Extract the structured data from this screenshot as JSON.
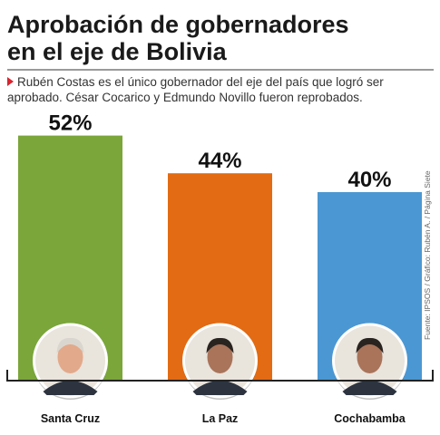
{
  "header": {
    "title_part1": "Aprobación de ",
    "title_bold": "gobernadores",
    "title_part2": "en el eje de Bolivia",
    "subtitle": "Rubén Costas es el único gobernador del eje del país que logró ser aprobado. César Cocarico y Edmundo Novillo fueron reprobados.",
    "accent_color": "#d62631"
  },
  "source": "Fuente: IPSOS / Gráfico: Rubén A. / Página Siete",
  "chart_data": {
    "type": "bar",
    "title": "Aprobación de gobernadores en el eje de Bolivia",
    "categories": [
      "Santa Cruz",
      "La Paz",
      "Cochabamba"
    ],
    "values": [
      52,
      44,
      40
    ],
    "value_labels": [
      "52%",
      "44%",
      "40%"
    ],
    "colors": [
      "#7aa63a",
      "#e26b13",
      "#4b97d3"
    ],
    "ylim": [
      0,
      60
    ],
    "grid": false,
    "legend": "none",
    "xlabel": "",
    "ylabel": ""
  }
}
